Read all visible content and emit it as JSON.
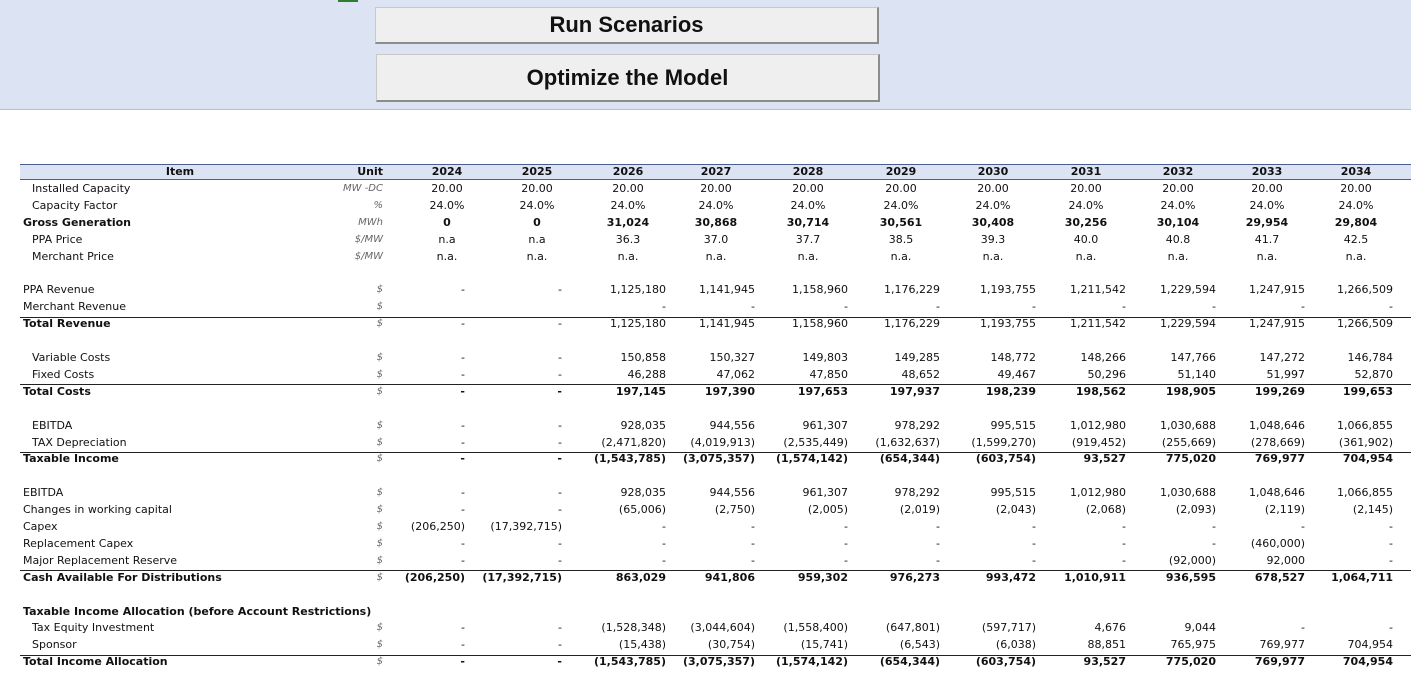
{
  "toolbar": {
    "run_scenarios": "Run Scenarios",
    "optimize_model": "Optimize the Model"
  },
  "header": {
    "item": "Item",
    "unit": "Unit",
    "years": [
      "2024",
      "2025",
      "2026",
      "2027",
      "2028",
      "2029",
      "2030",
      "2031",
      "2032",
      "2033",
      "2034"
    ]
  },
  "rows": [
    {
      "label": "Installed Capacity",
      "unit": "MW -DC",
      "indent": true,
      "bold": false,
      "values": [
        "20.00",
        "20.00",
        "20.00",
        "20.00",
        "20.00",
        "20.00",
        "20.00",
        "20.00",
        "20.00",
        "20.00",
        "20.00"
      ],
      "align": "center",
      "line": false
    },
    {
      "label": "Capacity Factor",
      "unit": "%",
      "indent": true,
      "bold": false,
      "values": [
        "24.0%",
        "24.0%",
        "24.0%",
        "24.0%",
        "24.0%",
        "24.0%",
        "24.0%",
        "24.0%",
        "24.0%",
        "24.0%",
        "24.0%"
      ],
      "align": "center",
      "line": false
    },
    {
      "label": "Gross Generation",
      "unit": "MWh",
      "indent": false,
      "bold": true,
      "values": [
        "0",
        "0",
        "31,024",
        "30,868",
        "30,714",
        "30,561",
        "30,408",
        "30,256",
        "30,104",
        "29,954",
        "29,804"
      ],
      "align": "center",
      "line": false
    },
    {
      "label": "PPA Price",
      "unit": "$/MW",
      "indent": true,
      "bold": false,
      "values": [
        "n.a",
        "n.a",
        "36.3",
        "37.0",
        "37.7",
        "38.5",
        "39.3",
        "40.0",
        "40.8",
        "41.7",
        "42.5"
      ],
      "align": "center",
      "line": false
    },
    {
      "label": "Merchant Price",
      "unit": "$/MW",
      "indent": true,
      "bold": false,
      "values": [
        "n.a.",
        "n.a.",
        "n.a.",
        "n.a.",
        "n.a.",
        "n.a.",
        "n.a.",
        "n.a.",
        "n.a.",
        "n.a.",
        "n.a."
      ],
      "align": "center",
      "line": false
    },
    {
      "label": "",
      "unit": "",
      "indent": false,
      "bold": false,
      "values": [],
      "align": "right",
      "line": false
    },
    {
      "label": "PPA Revenue",
      "unit": "$",
      "indent": false,
      "bold": false,
      "values": [
        "-",
        "-",
        "1,125,180",
        "1,141,945",
        "1,158,960",
        "1,176,229",
        "1,193,755",
        "1,211,542",
        "1,229,594",
        "1,247,915",
        "1,266,509"
      ],
      "align": "right",
      "line": false
    },
    {
      "label": "Merchant Revenue",
      "unit": "$",
      "indent": false,
      "bold": false,
      "values": [
        "",
        "",
        "-",
        "-",
        "-",
        "-",
        "-",
        "-",
        "-",
        "-",
        "-"
      ],
      "align": "right",
      "line": true
    },
    {
      "label": "Total Revenue",
      "unit": "$",
      "indent": false,
      "bold": true,
      "values": [
        "-",
        "-",
        "1,125,180",
        "1,141,945",
        "1,158,960",
        "1,176,229",
        "1,193,755",
        "1,211,542",
        "1,229,594",
        "1,247,915",
        "1,266,509"
      ],
      "align": "right",
      "line": false,
      "nobold": true
    },
    {
      "label": "",
      "unit": "",
      "indent": false,
      "bold": false,
      "values": [],
      "align": "right",
      "line": false
    },
    {
      "label": "Variable Costs",
      "unit": "$",
      "indent": true,
      "bold": false,
      "values": [
        "-",
        "-",
        "150,858",
        "150,327",
        "149,803",
        "149,285",
        "148,772",
        "148,266",
        "147,766",
        "147,272",
        "146,784"
      ],
      "align": "right",
      "line": false
    },
    {
      "label": "Fixed Costs",
      "unit": "$",
      "indent": true,
      "bold": false,
      "values": [
        "-",
        "-",
        "46,288",
        "47,062",
        "47,850",
        "48,652",
        "49,467",
        "50,296",
        "51,140",
        "51,997",
        "52,870"
      ],
      "align": "right",
      "line": true
    },
    {
      "label": "Total Costs",
      "unit": "$",
      "indent": false,
      "bold": true,
      "values": [
        "-",
        "-",
        "197,145",
        "197,390",
        "197,653",
        "197,937",
        "198,239",
        "198,562",
        "198,905",
        "199,269",
        "199,653"
      ],
      "align": "right",
      "line": false
    },
    {
      "label": "",
      "unit": "",
      "indent": false,
      "bold": false,
      "values": [],
      "align": "right",
      "line": false
    },
    {
      "label": "EBITDA",
      "unit": "$",
      "indent": true,
      "bold": false,
      "values": [
        "-",
        "-",
        "928,035",
        "944,556",
        "961,307",
        "978,292",
        "995,515",
        "1,012,980",
        "1,030,688",
        "1,048,646",
        "1,066,855"
      ],
      "align": "right",
      "line": false
    },
    {
      "label": "TAX Depreciation",
      "unit": "$",
      "indent": true,
      "bold": false,
      "values": [
        "-",
        "-",
        "(2,471,820)",
        "(4,019,913)",
        "(2,535,449)",
        "(1,632,637)",
        "(1,599,270)",
        "(919,452)",
        "(255,669)",
        "(278,669)",
        "(361,902)"
      ],
      "align": "right",
      "line": true
    },
    {
      "label": "Taxable Income",
      "unit": "$",
      "indent": false,
      "bold": true,
      "values": [
        "-",
        "-",
        "(1,543,785)",
        "(3,075,357)",
        "(1,574,142)",
        "(654,344)",
        "(603,754)",
        "93,527",
        "775,020",
        "769,977",
        "704,954"
      ],
      "align": "right",
      "line": false
    },
    {
      "label": "",
      "unit": "",
      "indent": false,
      "bold": false,
      "values": [],
      "align": "right",
      "line": false
    },
    {
      "label": "EBITDA",
      "unit": "$",
      "indent": false,
      "bold": false,
      "values": [
        "-",
        "-",
        "928,035",
        "944,556",
        "961,307",
        "978,292",
        "995,515",
        "1,012,980",
        "1,030,688",
        "1,048,646",
        "1,066,855"
      ],
      "align": "right",
      "line": false
    },
    {
      "label": "Changes in working capital",
      "unit": "$",
      "indent": false,
      "bold": false,
      "values": [
        "-",
        "-",
        "(65,006)",
        "(2,750)",
        "(2,005)",
        "(2,019)",
        "(2,043)",
        "(2,068)",
        "(2,093)",
        "(2,119)",
        "(2,145)"
      ],
      "align": "right",
      "line": false
    },
    {
      "label": "Capex",
      "unit": "$",
      "indent": false,
      "bold": false,
      "values": [
        "(206,250)",
        "(17,392,715)",
        "-",
        "-",
        "-",
        "-",
        "-",
        "-",
        "-",
        "-",
        "-"
      ],
      "align": "right",
      "line": false
    },
    {
      "label": "Replacement Capex",
      "unit": "$",
      "indent": false,
      "bold": false,
      "values": [
        "-",
        "-",
        "-",
        "-",
        "-",
        "-",
        "-",
        "-",
        "-",
        "(460,000)",
        "-"
      ],
      "align": "right",
      "line": false
    },
    {
      "label": "Major Replacement Reserve",
      "unit": "$",
      "indent": false,
      "bold": false,
      "values": [
        "-",
        "-",
        "-",
        "-",
        "-",
        "-",
        "-",
        "-",
        "(92,000)",
        "92,000",
        "-"
      ],
      "align": "right",
      "line": true
    },
    {
      "label": "Cash Available For Distributions",
      "unit": "$",
      "indent": false,
      "bold": true,
      "values": [
        "(206,250)",
        "(17,392,715)",
        "863,029",
        "941,806",
        "959,302",
        "976,273",
        "993,472",
        "1,010,911",
        "936,595",
        "678,527",
        "1,064,711"
      ],
      "align": "right",
      "line": false
    },
    {
      "label": "",
      "unit": "",
      "indent": false,
      "bold": false,
      "values": [],
      "align": "right",
      "line": false
    },
    {
      "label": "Taxable Income Allocation (before Account Restrictions)",
      "unit": "",
      "indent": false,
      "bold": true,
      "values": [],
      "align": "right",
      "line": false
    },
    {
      "label": "Tax Equity Investment",
      "unit": "$",
      "indent": true,
      "bold": false,
      "values": [
        "-",
        "-",
        "(1,528,348)",
        "(3,044,604)",
        "(1,558,400)",
        "(647,801)",
        "(597,717)",
        "4,676",
        "9,044",
        "-",
        "-"
      ],
      "align": "right",
      "line": false
    },
    {
      "label": "Sponsor",
      "unit": "$",
      "indent": true,
      "bold": false,
      "values": [
        "-",
        "-",
        "(15,438)",
        "(30,754)",
        "(15,741)",
        "(6,543)",
        "(6,038)",
        "88,851",
        "765,975",
        "769,977",
        "704,954"
      ],
      "align": "right",
      "line": true
    },
    {
      "label": "Total Income Allocation",
      "unit": "$",
      "indent": false,
      "bold": true,
      "values": [
        "-",
        "-",
        "(1,543,785)",
        "(3,075,357)",
        "(1,574,142)",
        "(654,344)",
        "(603,754)",
        "93,527",
        "775,020",
        "769,977",
        "704,954"
      ],
      "align": "right",
      "line": false
    }
  ]
}
